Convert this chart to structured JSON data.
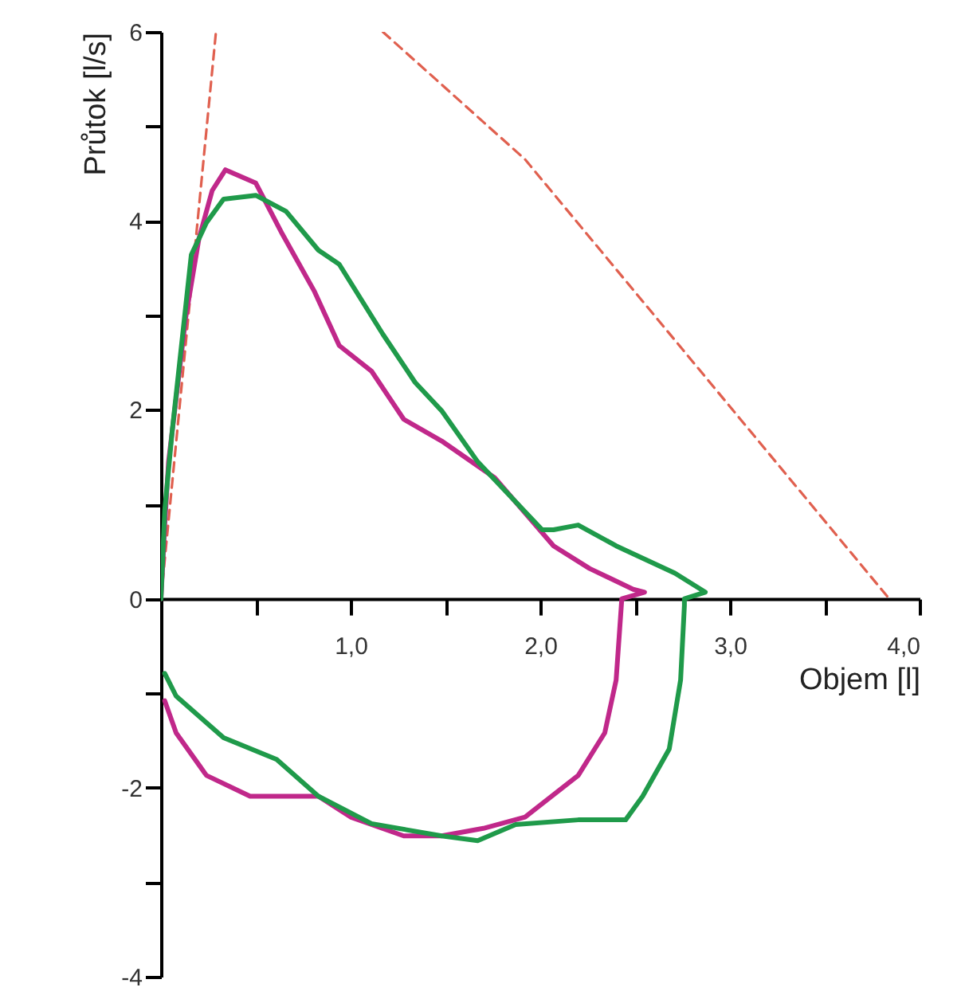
{
  "chart_data": {
    "type": "line",
    "xlabel": "Objem [l]",
    "ylabel": "Průtok [l/s]",
    "xlim": [
      0,
      4
    ],
    "ylim": [
      -4,
      6
    ],
    "xticks": [
      {
        "value": 0.5,
        "label": null
      },
      {
        "value": 1,
        "label": "1,0"
      },
      {
        "value": 1.5,
        "label": null
      },
      {
        "value": 2,
        "label": "2,0"
      },
      {
        "value": 2.5,
        "label": null
      },
      {
        "value": 3,
        "label": "3,0"
      },
      {
        "value": 3.5,
        "label": null
      },
      {
        "value": 4,
        "label": "4,0"
      }
    ],
    "yticks": [
      -4,
      {
        "value": -3,
        "label": null
      },
      -2,
      {
        "value": -1,
        "label": null
      },
      0,
      {
        "value": 1,
        "label": null
      },
      2,
      {
        "value": 3,
        "label": null
      },
      4,
      {
        "value": 5,
        "label": null
      },
      6
    ],
    "grid": false,
    "marker": "none",
    "series": [
      {
        "color": "#e0604f",
        "line_style": "dashed",
        "x": [
          0,
          0.29
        ],
        "values": [
          0,
          6
        ]
      },
      {
        "color": "#e0604f",
        "line_style": "dashed",
        "x": [
          1.17,
          1.92,
          3.84
        ],
        "values": [
          6,
          4.65,
          0
        ]
      },
      {
        "color": "#c0288a",
        "line_style": "solid",
        "x": [
          0,
          0.02,
          0.04,
          0.08,
          0.13,
          0.2,
          0.27,
          0.34,
          0.5,
          0.64,
          0.81,
          0.94,
          1.11,
          1.28,
          1.48,
          1.76,
          2.07,
          2.26,
          2.49,
          2.55,
          2.43,
          2.4,
          2.34,
          2.2,
          1.92,
          1.7,
          1.48,
          1.28,
          1.0,
          0.83,
          0.47,
          0.24,
          0.08,
          0.02
        ],
        "values": [
          0,
          0.78,
          1.45,
          2.12,
          2.97,
          3.81,
          4.32,
          4.54,
          4.4,
          3.86,
          3.25,
          2.68,
          2.41,
          1.9,
          1.67,
          1.28,
          0.56,
          0.32,
          0.1,
          0.07,
          0,
          -0.86,
          -1.42,
          -1.87,
          -2.31,
          -2.43,
          -2.51,
          -2.51,
          -2.31,
          -2.09,
          -2.09,
          -1.87,
          -1.42,
          -1.08
        ]
      },
      {
        "color": "#1f9a4a",
        "line_style": "solid",
        "x": [
          0,
          0.02,
          0.06,
          0.16,
          0.24,
          0.33,
          0.5,
          0.66,
          0.83,
          0.94,
          1.17,
          1.34,
          1.48,
          1.67,
          2.01,
          2.07,
          2.2,
          2.4,
          2.71,
          2.87,
          2.76,
          2.76,
          2.74,
          2.68,
          2.54,
          2.45,
          2.2,
          1.87,
          1.67,
          1.48,
          1.11,
          0.83,
          0.61,
          0.33,
          0.08,
          0.02
        ],
        "values": [
          0,
          0.94,
          1.79,
          3.64,
          3.98,
          4.23,
          4.27,
          4.1,
          3.69,
          3.54,
          2.8,
          2.29,
          1.99,
          1.45,
          0.73,
          0.73,
          0.78,
          0.56,
          0.27,
          0.07,
          0,
          -0.07,
          -0.86,
          -1.59,
          -2.09,
          -2.34,
          -2.34,
          -2.39,
          -2.56,
          -2.51,
          -2.38,
          -2.09,
          -1.7,
          -1.47,
          -1.03,
          -0.79
        ]
      }
    ]
  }
}
